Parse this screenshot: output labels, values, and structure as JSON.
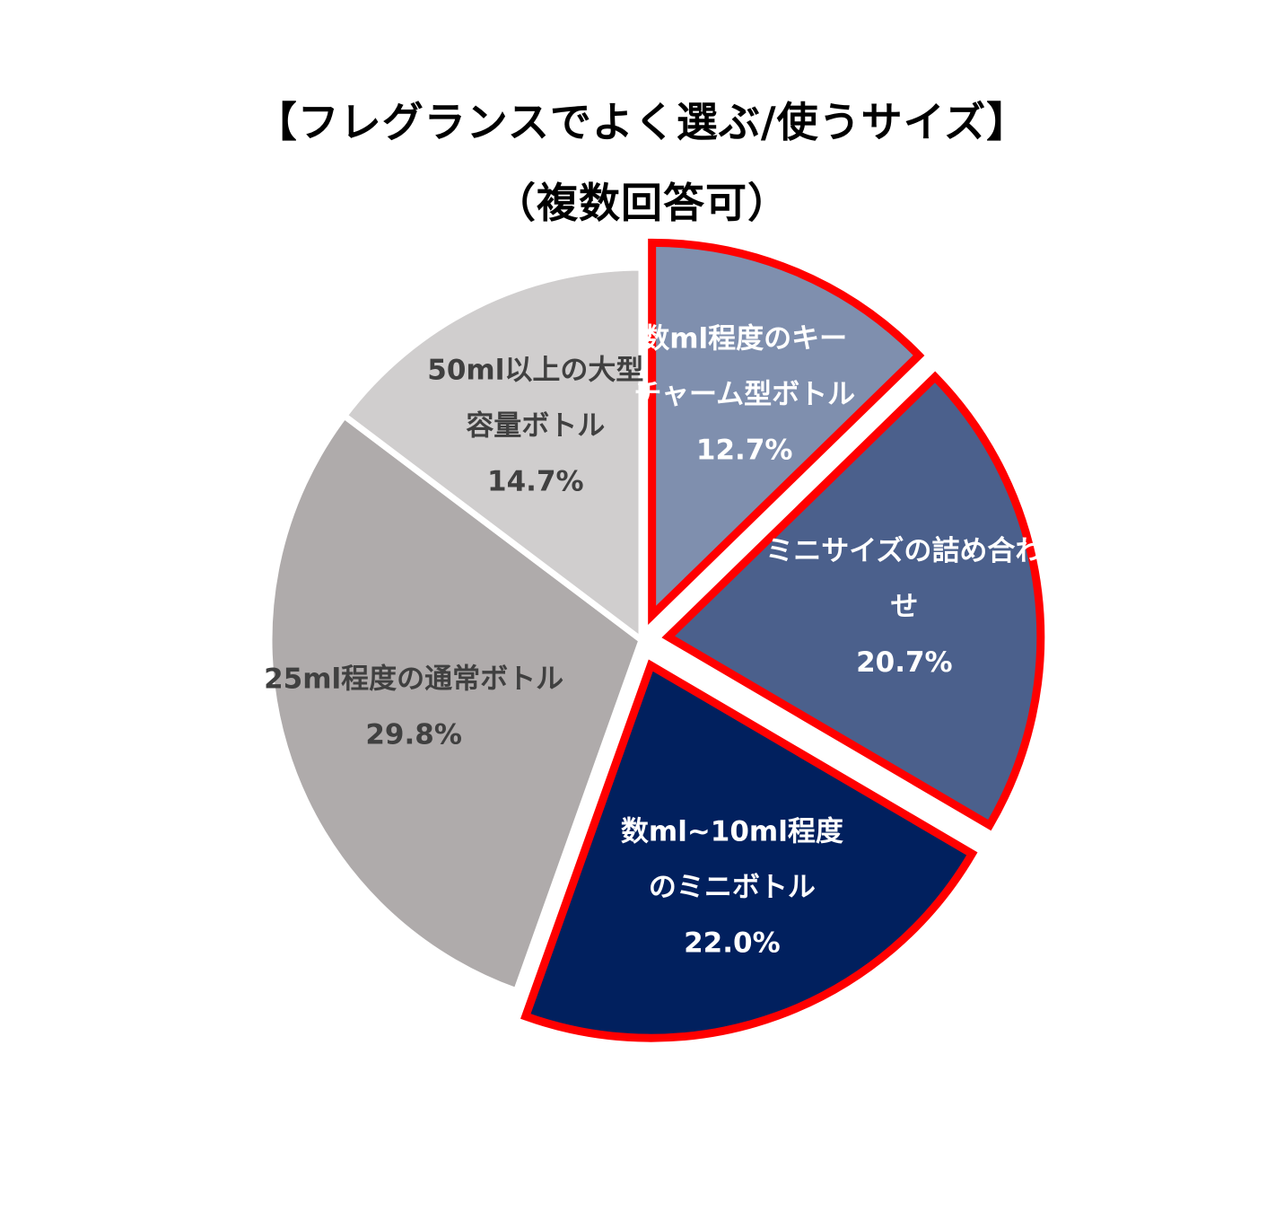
{
  "chart_data": {
    "type": "pie",
    "title_lines": [
      "【フレグランスでよく選ぶ/使うサイズ】",
      "（複数回答可）"
    ],
    "slices": [
      {
        "label_lines": [
          "数ml程度のキー",
          "チャーム型ボトル"
        ],
        "value": 12.7,
        "value_label": "12.7%",
        "color": "#7f8fae",
        "text_color": "#ffffff",
        "highlighted": true
      },
      {
        "label_lines": [
          "ミニサイズの詰め合わ",
          "せ"
        ],
        "value": 20.7,
        "value_label": "20.7%",
        "color": "#4b608c",
        "text_color": "#ffffff",
        "highlighted": true
      },
      {
        "label_lines": [
          "数ml~10ml程度",
          "のミニボトル"
        ],
        "value": 22.0,
        "value_label": "22.0%",
        "color": "#01205e",
        "text_color": "#ffffff",
        "highlighted": true
      },
      {
        "label_lines": [
          "25ml程度の通常ボトル"
        ],
        "value": 29.8,
        "value_label": "29.8%",
        "color": "#afabab",
        "text_color": "#404040",
        "highlighted": false
      },
      {
        "label_lines": [
          "50ml以上の大型",
          "容量ボトル"
        ],
        "value": 14.7,
        "value_label": "14.7%",
        "color": "#d0cece",
        "text_color": "#404040",
        "highlighted": false
      }
    ],
    "highlight_color": "#ff0000",
    "start_angle_deg": 0,
    "direction": "clockwise"
  }
}
